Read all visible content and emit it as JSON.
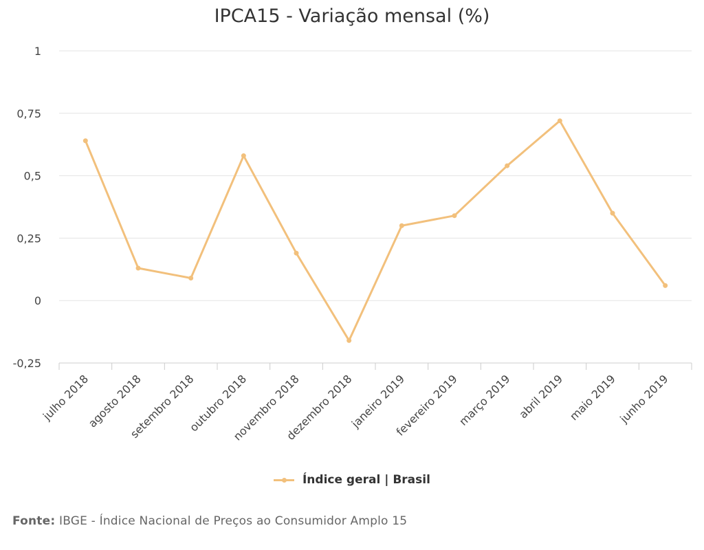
{
  "chart_data": {
    "type": "line",
    "title": "IPCA15 - Variação mensal (%)",
    "categories": [
      "julho 2018",
      "agosto 2018",
      "setembro 2018",
      "outubro 2018",
      "novembro 2018",
      "dezembro 2018",
      "janeiro 2019",
      "fevereiro 2019",
      "março 2019",
      "abril 2019",
      "maio 2019",
      "junho 2019"
    ],
    "series": [
      {
        "name": "Índice geral | Brasil",
        "color": "#f2c07c",
        "values": [
          0.64,
          0.13,
          0.09,
          0.58,
          0.19,
          -0.16,
          0.3,
          0.34,
          0.54,
          0.72,
          0.35,
          0.06
        ]
      }
    ],
    "ylim": [
      -0.25,
      1
    ],
    "yticks": [
      1,
      0.75,
      0.5,
      0.25,
      0,
      -0.25
    ],
    "ytick_labels": [
      "1",
      "0,75",
      "0,5",
      "0,25",
      "0",
      "-0,25"
    ],
    "grid": true,
    "legend_position": "bottom-center",
    "xlabel": "",
    "ylabel": ""
  },
  "legend": {
    "label": "Índice geral | Brasil"
  },
  "source": {
    "prefix": "Fonte:",
    "text": " IBGE - Índice Nacional de Preços ao Consumidor Amplo 15"
  },
  "colors": {
    "series": "#f2c07c",
    "grid": "#e3e3e3",
    "text": "#333333"
  }
}
